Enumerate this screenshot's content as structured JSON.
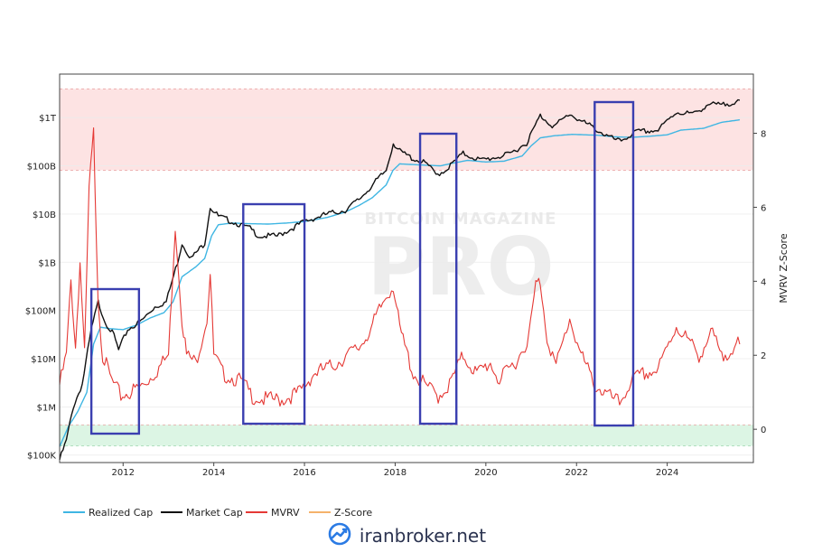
{
  "chart_data": {
    "type": "line",
    "left_axis": {
      "scale": "log",
      "tick_labels": [
        "$100K",
        "$1M",
        "$10M",
        "$100M",
        "$1B",
        "$10B",
        "$100B",
        "$1T"
      ],
      "tick_values": [
        100000,
        1000000,
        10000000,
        100000000,
        1000000000,
        10000000000,
        100000000000,
        1000000000000
      ],
      "range": [
        70000,
        8000000000000
      ]
    },
    "right_axis": {
      "label": "MVRV Z-Score",
      "tick_labels": [
        "0",
        "2",
        "4",
        "6",
        "8"
      ],
      "tick_values": [
        0,
        2,
        4,
        6,
        8
      ],
      "range": [
        -0.9,
        9.6
      ]
    },
    "x_axis": {
      "tick_labels": [
        "2012",
        "2014",
        "2016",
        "2018",
        "2020",
        "2022",
        "2024"
      ],
      "tick_values": [
        2012,
        2014,
        2016,
        2018,
        2020,
        2022,
        2024
      ],
      "range": [
        2010.6,
        2025.9
      ]
    },
    "zones": [
      {
        "name": "overvalued",
        "from": 7.0,
        "to": 9.2,
        "color": "#fde3e3"
      },
      {
        "name": "undervalued",
        "from": -0.45,
        "to": 0.12,
        "color": "#dcf5e4"
      }
    ],
    "highlight_boxes": [
      {
        "from": 2011.3,
        "to": 2012.35
      },
      {
        "from": 2014.65,
        "to": 2016.0
      },
      {
        "from": 2018.55,
        "to": 2019.35
      },
      {
        "from": 2022.4,
        "to": 2023.25
      }
    ],
    "series": [
      {
        "name": "Realized Cap",
        "color": "#3fb6e3",
        "axis": "left",
        "x": [
          2010.6,
          2010.8,
          2011.0,
          2011.2,
          2011.35,
          2011.5,
          2011.7,
          2012.0,
          2012.3,
          2012.6,
          2012.9,
          2013.1,
          2013.3,
          2013.6,
          2013.8,
          2013.95,
          2014.1,
          2014.4,
          2014.8,
          2015.2,
          2015.6,
          2016.0,
          2016.5,
          2016.9,
          2017.2,
          2017.5,
          2017.8,
          2017.95,
          2018.1,
          2018.5,
          2019.0,
          2019.3,
          2019.6,
          2020.0,
          2020.4,
          2020.8,
          2021.0,
          2021.2,
          2021.5,
          2021.9,
          2022.2,
          2022.5,
          2022.8,
          2023.2,
          2023.6,
          2024.0,
          2024.3,
          2024.8,
          2025.2,
          2025.6
        ],
        "y": [
          150000,
          400000,
          800000,
          2000000,
          20000000,
          45000000,
          42000000,
          40000000,
          50000000,
          70000000,
          90000000,
          150000000,
          500000000,
          800000000,
          1200000000,
          3500000000,
          6000000000,
          6500000000,
          6300000000,
          6200000000,
          6500000000,
          7000000000,
          8500000000,
          11000000000,
          15000000000,
          22000000000,
          40000000000,
          80000000000,
          110000000000,
          105000000000,
          100000000000,
          115000000000,
          130000000000,
          120000000000,
          125000000000,
          160000000000,
          260000000000,
          380000000000,
          420000000000,
          450000000000,
          440000000000,
          430000000000,
          400000000000,
          390000000000,
          410000000000,
          440000000000,
          550000000000,
          600000000000,
          800000000000,
          900000000000
        ]
      },
      {
        "name": "Market Cap",
        "color": "#111111",
        "axis": "left",
        "x": [
          2010.6,
          2010.75,
          2010.9,
          2011.1,
          2011.3,
          2011.45,
          2011.6,
          2011.8,
          2011.9,
          2012.1,
          2012.4,
          2012.7,
          2012.95,
          2013.2,
          2013.3,
          2013.5,
          2013.8,
          2013.92,
          2014.1,
          2014.4,
          2014.8,
          2015.0,
          2015.4,
          2015.8,
          2016.0,
          2016.5,
          2016.9,
          2017.2,
          2017.5,
          2017.8,
          2017.96,
          2018.1,
          2018.4,
          2018.7,
          2018.9,
          2019.1,
          2019.5,
          2019.9,
          2020.2,
          2020.5,
          2020.9,
          2021.2,
          2021.5,
          2021.85,
          2022.1,
          2022.4,
          2022.7,
          2022.95,
          2023.3,
          2023.8,
          2024.2,
          2024.6,
          2024.9,
          2025.2,
          2025.6
        ],
        "y": [
          80000,
          200000,
          1000000,
          3000000,
          40000000,
          150000000,
          60000000,
          30000000,
          15000000,
          40000000,
          60000000,
          120000000,
          150000000,
          1000000000,
          2500000000,
          1200000000,
          2500000000,
          14000000000,
          9000000000,
          7000000000,
          5000000000,
          3500000000,
          3500000000,
          5500000000,
          7000000000,
          10000000000,
          12000000000,
          20000000000,
          40000000000,
          80000000000,
          300000000000,
          200000000000,
          140000000000,
          110000000000,
          65000000000,
          80000000000,
          180000000000,
          130000000000,
          150000000000,
          170000000000,
          300000000000,
          1100000000000,
          650000000000,
          1200000000000,
          850000000000,
          600000000000,
          400000000000,
          320000000000,
          500000000000,
          550000000000,
          1300000000000,
          1200000000000,
          1900000000000,
          1800000000000,
          2300000000000
        ]
      },
      {
        "name": "MVRV",
        "color": "#e53935",
        "axis": "right",
        "x": [
          2010.6,
          2010.75,
          2010.85,
          2010.95,
          2011.05,
          2011.15,
          2011.25,
          2011.35,
          2011.45,
          2011.55,
          2011.75,
          2011.95,
          2012.15,
          2012.45,
          2012.75,
          2013.0,
          2013.15,
          2013.3,
          2013.4,
          2013.6,
          2013.85,
          2013.92,
          2014.0,
          2014.2,
          2014.6,
          2014.85,
          2015.1,
          2015.5,
          2015.9,
          2016.2,
          2016.6,
          2016.95,
          2017.2,
          2017.5,
          2017.8,
          2017.96,
          2018.1,
          2018.4,
          2018.65,
          2018.95,
          2019.2,
          2019.5,
          2019.8,
          2020.1,
          2020.3,
          2020.7,
          2020.95,
          2021.1,
          2021.2,
          2021.35,
          2021.55,
          2021.85,
          2022.1,
          2022.4,
          2022.7,
          2022.95,
          2023.2,
          2023.5,
          2023.8,
          2024.2,
          2024.4,
          2024.7,
          2025.0,
          2025.2,
          2025.4,
          2025.6
        ],
        "y": [
          1.2,
          2.0,
          4.0,
          2.2,
          4.5,
          2.0,
          6.5,
          8.0,
          3.5,
          2.0,
          1.3,
          0.9,
          1.0,
          1.2,
          1.6,
          2.0,
          5.5,
          3.0,
          2.0,
          1.8,
          3.0,
          4.2,
          2.0,
          1.5,
          1.3,
          0.9,
          0.8,
          0.8,
          1.0,
          1.5,
          1.7,
          2.0,
          2.2,
          2.8,
          3.6,
          3.9,
          2.7,
          1.5,
          1.2,
          0.9,
          1.2,
          2.0,
          1.5,
          1.8,
          1.3,
          1.9,
          2.5,
          3.9,
          4.0,
          2.5,
          1.7,
          3.0,
          2.0,
          1.2,
          0.9,
          0.7,
          1.3,
          1.5,
          1.6,
          2.8,
          2.5,
          2.0,
          2.6,
          1.9,
          2.2,
          2.3
        ]
      }
    ]
  },
  "legend": {
    "items": [
      {
        "label": "Realized Cap",
        "color": "#3fb6e3"
      },
      {
        "label": "Market Cap",
        "color": "#111111"
      },
      {
        "label": "MVRV",
        "color": "#e53935"
      },
      {
        "label": "Z-Score",
        "color": "#f5b26b"
      }
    ]
  },
  "watermark": {
    "top": "BITCOIN MAGAZINE",
    "main": "PRO"
  },
  "footer": {
    "text": "iranbroker.net",
    "icon": "chart-logo-icon",
    "color": "#2b3350"
  }
}
